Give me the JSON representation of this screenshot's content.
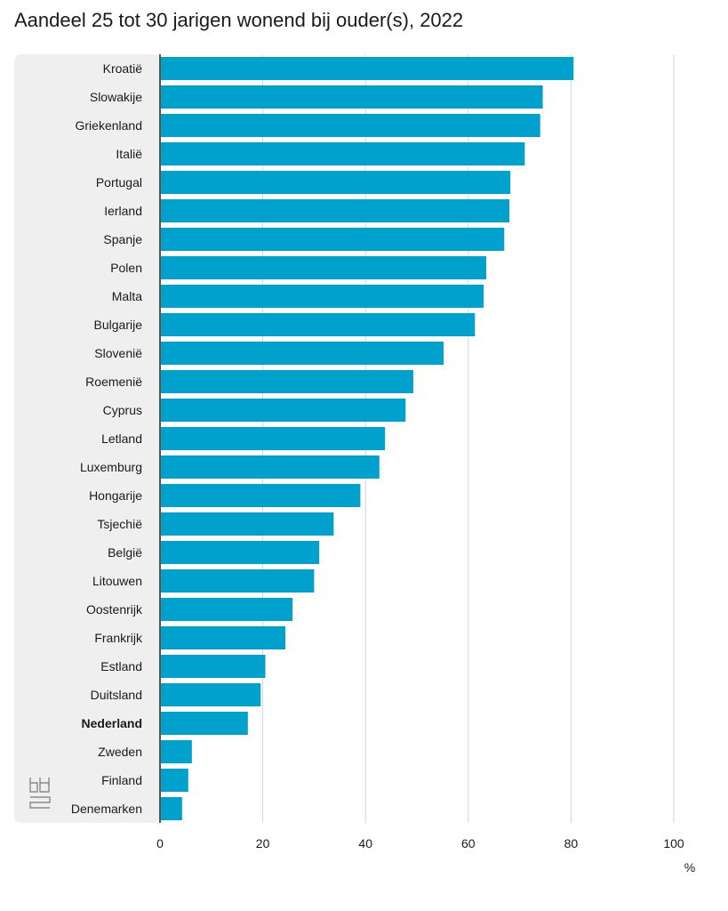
{
  "chart_data": {
    "type": "bar",
    "orientation": "horizontal",
    "title": "Aandeel 25 tot 30 jarigen wonend bij ouder(s), 2022",
    "unit": "%",
    "xlim": [
      0,
      100
    ],
    "ticks": [
      "0",
      "20",
      "40",
      "60",
      "80",
      "100"
    ],
    "grid": true,
    "highlight": "Nederland",
    "bar_color": "#00a1cd",
    "categories": [
      "Kroatië",
      "Slowakije",
      "Griekenland",
      "Italië",
      "Portugal",
      "Ierland",
      "Spanje",
      "Polen",
      "Malta",
      "Bulgarije",
      "Slovenië",
      "Roemenië",
      "Cyprus",
      "Letland",
      "Luxemburg",
      "Hongarije",
      "Tsjechië",
      "België",
      "Litouwen",
      "Oostenrijk",
      "Frankrijk",
      "Estland",
      "Duitsland",
      "Nederland",
      "Zweden",
      "Finland",
      "Denemarken"
    ],
    "values": [
      80.5,
      74.5,
      74.0,
      71.0,
      68.2,
      68.0,
      67.0,
      63.5,
      63.0,
      61.3,
      55.2,
      49.3,
      47.8,
      43.8,
      42.7,
      39.0,
      33.8,
      31.0,
      30.0,
      25.8,
      24.4,
      20.5,
      19.6,
      17.1,
      6.2,
      5.5,
      4.3
    ]
  }
}
